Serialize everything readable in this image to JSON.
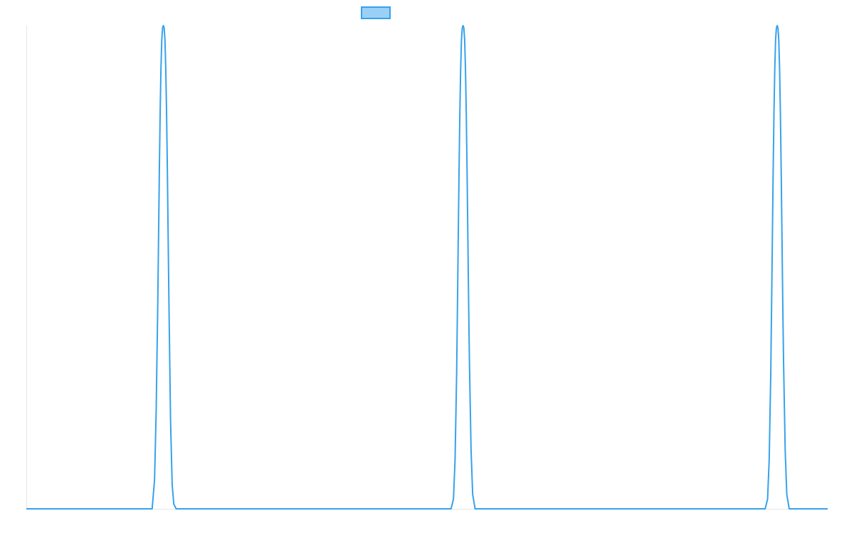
{
  "chart_data": {
    "type": "line",
    "title": "",
    "xlabel": "",
    "ylabel": "",
    "grid": false,
    "legend": {
      "placement": "top-center",
      "swatch_fill": "#9ad0f5",
      "swatch_stroke": "#36a2eb",
      "label": ""
    },
    "series": [
      {
        "color": "#36a2eb",
        "x": [
          0,
          157,
          160,
          162,
          164,
          165,
          166,
          167,
          168,
          169,
          170,
          171,
          172,
          173,
          174,
          175,
          176,
          177,
          178,
          179,
          180,
          182,
          184,
          187,
          530,
          533,
          535,
          537,
          538,
          539,
          540,
          541,
          542,
          543,
          544,
          545,
          546,
          547,
          548,
          549,
          550,
          551,
          552,
          553,
          555,
          557,
          560,
          922,
          925,
          927,
          929,
          930,
          931,
          932,
          933,
          934,
          935,
          936,
          937,
          938,
          939,
          940,
          941,
          942,
          943,
          944,
          945,
          947,
          949,
          952,
          1000
        ],
        "y": [
          0,
          0,
          0.06,
          0.2,
          0.42,
          0.56,
          0.7,
          0.82,
          0.91,
          0.97,
          0.995,
          1.0,
          0.995,
          0.97,
          0.91,
          0.82,
          0.7,
          0.56,
          0.42,
          0.3,
          0.18,
          0.05,
          0.01,
          0,
          0,
          0.02,
          0.1,
          0.28,
          0.42,
          0.56,
          0.7,
          0.82,
          0.91,
          0.97,
          0.995,
          1.0,
          0.995,
          0.97,
          0.91,
          0.82,
          0.7,
          0.56,
          0.42,
          0.3,
          0.12,
          0.03,
          0,
          0,
          0.02,
          0.1,
          0.28,
          0.42,
          0.56,
          0.7,
          0.82,
          0.91,
          0.97,
          0.995,
          1.0,
          0.995,
          0.97,
          0.91,
          0.82,
          0.7,
          0.56,
          0.42,
          0.3,
          0.12,
          0.03,
          0,
          0
        ]
      }
    ],
    "xlim": [
      0,
      1000
    ],
    "ylim": [
      0,
      1
    ]
  }
}
